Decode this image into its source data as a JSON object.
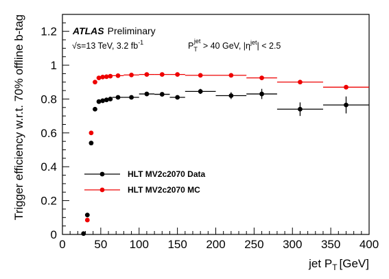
{
  "chart_data": {
    "type": "scatter",
    "xlabel": "jet P",
    "xlabel_sub": "T",
    "xlabel_unit": "[GeV]",
    "ylabel": "Trigger efficiency w.r.t. 70% offline b-tag",
    "xlim": [
      0,
      400
    ],
    "ylim": [
      0,
      1.3
    ],
    "xticks": [
      0,
      50,
      100,
      150,
      200,
      250,
      300,
      350,
      400
    ],
    "yticks": [
      0,
      0.2,
      0.4,
      0.6,
      0.8,
      1,
      1.2
    ],
    "xtick_labels": [
      "0",
      "50",
      "100",
      "150",
      "200",
      "250",
      "300",
      "350",
      "400"
    ],
    "ytick_labels": [
      "0",
      "0.2",
      "0.4",
      "0.6",
      "0.8",
      "1",
      "1.2"
    ],
    "grid": false,
    "legend_position": "lower-left",
    "annotations": {
      "atlas": "ATLAS",
      "preliminary": "Preliminary",
      "energy": "√s=13 TeV, 3.2 fb",
      "energy_sup": "-1",
      "cut_p": "P",
      "cut_sub": "T",
      "cut_sup": "jet",
      "cut_rest": " > 40 GeV, |η",
      "cut_sup2": "jet",
      "cut_end": "| < 2.5"
    },
    "series": [
      {
        "name": "HLT MV2c2070 Data",
        "color": "#000000",
        "points": [
          {
            "x": 27.5,
            "xerr": 2.5,
            "y": 0.005,
            "yerr": 0.003
          },
          {
            "x": 32.5,
            "xerr": 2.5,
            "y": 0.115,
            "yerr": 0.006
          },
          {
            "x": 37.5,
            "xerr": 2.5,
            "y": 0.54,
            "yerr": 0.01
          },
          {
            "x": 42.5,
            "xerr": 2.5,
            "y": 0.74,
            "yerr": 0.01
          },
          {
            "x": 47.5,
            "xerr": 2.5,
            "y": 0.785,
            "yerr": 0.01
          },
          {
            "x": 52.5,
            "xerr": 2.5,
            "y": 0.79,
            "yerr": 0.01
          },
          {
            "x": 57.5,
            "xerr": 2.5,
            "y": 0.795,
            "yerr": 0.01
          },
          {
            "x": 62.5,
            "xerr": 2.5,
            "y": 0.8,
            "yerr": 0.01
          },
          {
            "x": 72.5,
            "xerr": 7.5,
            "y": 0.81,
            "yerr": 0.01
          },
          {
            "x": 90,
            "xerr": 10,
            "y": 0.81,
            "yerr": 0.01
          },
          {
            "x": 110,
            "xerr": 10,
            "y": 0.83,
            "yerr": 0.012
          },
          {
            "x": 130,
            "xerr": 10,
            "y": 0.828,
            "yerr": 0.012
          },
          {
            "x": 150,
            "xerr": 10,
            "y": 0.81,
            "yerr": 0.012
          },
          {
            "x": 180,
            "xerr": 20,
            "y": 0.845,
            "yerr": 0.015
          },
          {
            "x": 220,
            "xerr": 20,
            "y": 0.82,
            "yerr": 0.02
          },
          {
            "x": 260,
            "xerr": 20,
            "y": 0.83,
            "yerr": 0.03
          },
          {
            "x": 310,
            "xerr": 30,
            "y": 0.74,
            "yerr": 0.04
          },
          {
            "x": 370,
            "xerr": 30,
            "y": 0.765,
            "yerr": 0.05
          }
        ]
      },
      {
        "name": "HLT MV2c2070 MC",
        "color": "#ee0000",
        "points": [
          {
            "x": 32.5,
            "xerr": 2.5,
            "y": 0.085,
            "yerr": 0.003
          },
          {
            "x": 37.5,
            "xerr": 2.5,
            "y": 0.6,
            "yerr": 0.005
          },
          {
            "x": 42.5,
            "xerr": 2.5,
            "y": 0.9,
            "yerr": 0.005
          },
          {
            "x": 47.5,
            "xerr": 2.5,
            "y": 0.925,
            "yerr": 0.004
          },
          {
            "x": 52.5,
            "xerr": 2.5,
            "y": 0.93,
            "yerr": 0.004
          },
          {
            "x": 57.5,
            "xerr": 2.5,
            "y": 0.932,
            "yerr": 0.004
          },
          {
            "x": 62.5,
            "xerr": 2.5,
            "y": 0.935,
            "yerr": 0.004
          },
          {
            "x": 72.5,
            "xerr": 7.5,
            "y": 0.938,
            "yerr": 0.004
          },
          {
            "x": 90,
            "xerr": 10,
            "y": 0.942,
            "yerr": 0.004
          },
          {
            "x": 110,
            "xerr": 10,
            "y": 0.945,
            "yerr": 0.004
          },
          {
            "x": 130,
            "xerr": 10,
            "y": 0.945,
            "yerr": 0.004
          },
          {
            "x": 150,
            "xerr": 10,
            "y": 0.945,
            "yerr": 0.004
          },
          {
            "x": 180,
            "xerr": 20,
            "y": 0.94,
            "yerr": 0.004
          },
          {
            "x": 220,
            "xerr": 20,
            "y": 0.94,
            "yerr": 0.005
          },
          {
            "x": 260,
            "xerr": 20,
            "y": 0.925,
            "yerr": 0.006
          },
          {
            "x": 310,
            "xerr": 30,
            "y": 0.9,
            "yerr": 0.007
          },
          {
            "x": 370,
            "xerr": 30,
            "y": 0.87,
            "yerr": 0.008
          }
        ]
      }
    ]
  }
}
